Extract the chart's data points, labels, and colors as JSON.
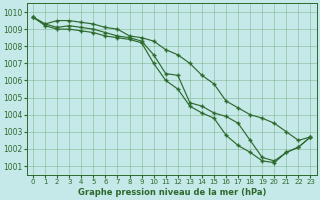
{
  "title": "Graphe pression niveau de la mer (hPa)",
  "bg_color": "#c5e8e8",
  "grid_color": "#5a9a5a",
  "line_color": "#2d6a2d",
  "xlim": [
    -0.5,
    23.5
  ],
  "ylim": [
    1000.5,
    1010.5
  ],
  "xticks": [
    0,
    1,
    2,
    3,
    4,
    5,
    6,
    7,
    8,
    9,
    10,
    11,
    12,
    13,
    14,
    15,
    16,
    17,
    18,
    19,
    20,
    21,
    22,
    23
  ],
  "yticks": [
    1001,
    1002,
    1003,
    1004,
    1005,
    1006,
    1007,
    1008,
    1009,
    1010
  ],
  "series1": [
    1009.7,
    1009.3,
    1009.5,
    1009.5,
    1009.4,
    1009.3,
    1009.1,
    1009.0,
    1008.6,
    1008.5,
    1008.3,
    1007.8,
    1007.5,
    1007.0,
    1006.3,
    1005.8,
    1004.8,
    1004.4,
    1004.0,
    1003.8,
    1003.5,
    1003.0,
    1002.5,
    1002.7
  ],
  "series2": [
    1009.7,
    1009.3,
    1009.1,
    1009.2,
    1009.1,
    1009.0,
    1008.8,
    1008.6,
    1008.5,
    1008.3,
    1007.5,
    1006.4,
    1006.3,
    1004.7,
    1004.5,
    1004.1,
    1003.9,
    1003.5,
    1002.5,
    1001.5,
    1001.3,
    1001.8,
    1002.1,
    1002.7
  ],
  "series3": [
    1009.7,
    1009.2,
    1009.0,
    1009.0,
    1008.9,
    1008.8,
    1008.6,
    1008.5,
    1008.4,
    1008.2,
    1007.0,
    1006.0,
    1005.5,
    1004.5,
    1004.1,
    1003.8,
    1002.8,
    1002.2,
    1001.8,
    1001.3,
    1001.2,
    1001.8,
    1002.1,
    1002.7
  ],
  "xlabel_fontsize": 6,
  "ytick_fontsize": 5.5,
  "xtick_fontsize": 5
}
